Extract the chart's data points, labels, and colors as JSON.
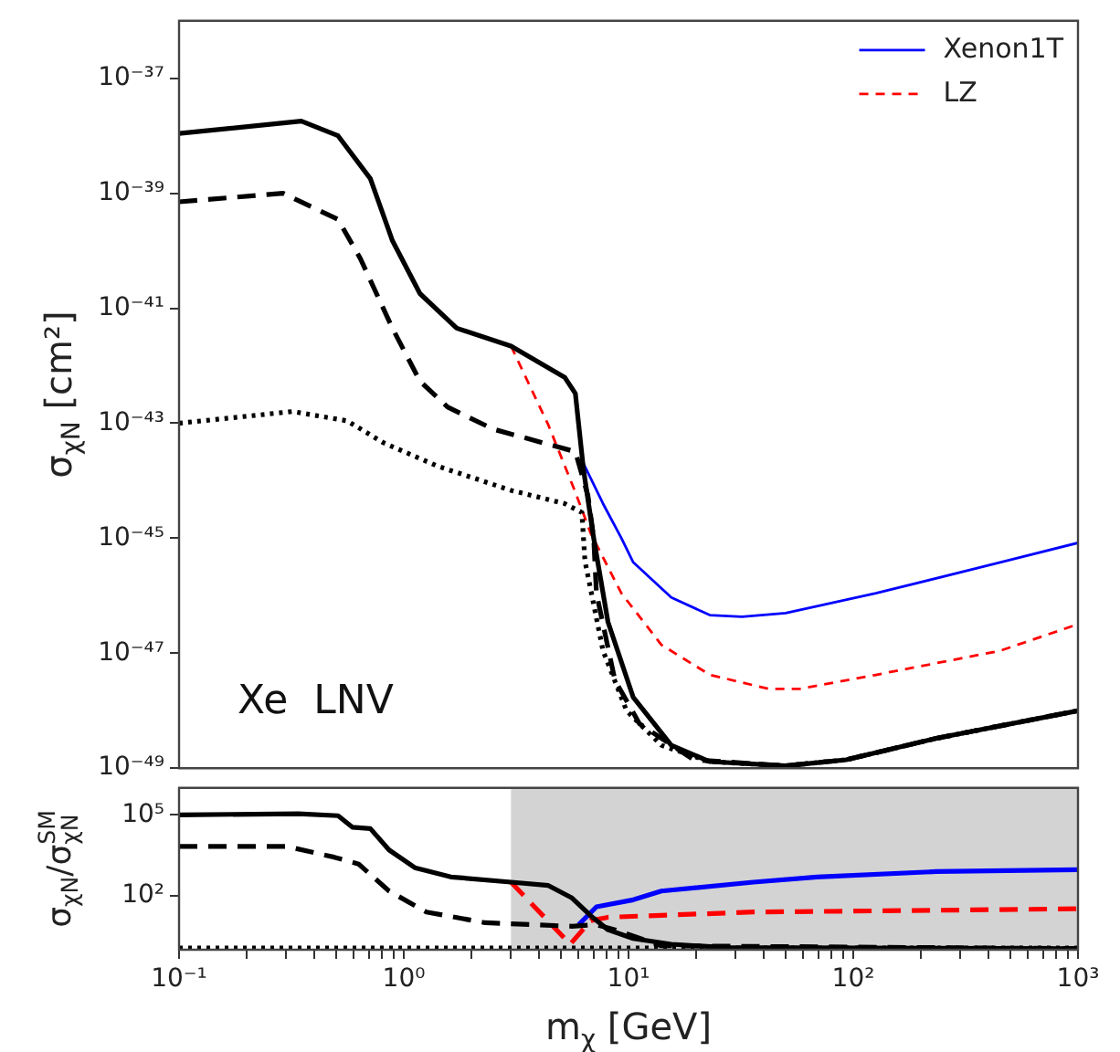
{
  "chart_data": [
    {
      "type": "line",
      "ylabel": "σ$_{χN}$ [cm²]",
      "log": "xy",
      "xlim": [
        0.1,
        1000
      ],
      "ylim": [
        1e-49,
        1e-36
      ],
      "tick_labels": "y",
      "grid": false,
      "legend": "top right",
      "annotations": [
        "Xe  LNV"
      ],
      "yticks": [
        {
          "value": 1e-49,
          "label": "10⁻⁴⁹"
        },
        {
          "value": 1e-47,
          "label": "10⁻⁴⁷"
        },
        {
          "value": 1e-45,
          "label": "10⁻⁴⁵"
        },
        {
          "value": 1e-43,
          "label": "10⁻⁴³"
        },
        {
          "value": 1e-41,
          "label": "10⁻⁴¹"
        },
        {
          "value": 1e-39,
          "label": "10⁻³⁹"
        },
        {
          "value": 1e-37,
          "label": "10⁻³⁷"
        }
      ],
      "series": [
        {
          "color": "#000000",
          "line_style": "solid",
          "x": [
            0.1,
            0.35,
            0.51,
            0.71,
            0.89,
            1.18,
            1.72,
            3.0,
            5.2,
            5.8,
            6.3,
            7.0,
            8.1,
            10.5,
            15.5,
            23,
            50,
            93,
            234,
            1000
          ],
          "values": [
            1.1e-38,
            1.8e-38,
            1e-38,
            1.8e-39,
            1.5e-40,
            1.8e-41,
            4.5e-42,
            2.2e-42,
            6.3e-43,
            3.3e-43,
            1.6e-44,
            1e-45,
            3.5e-47,
            1.7e-48,
            2.5e-49,
            1.3e-49,
            1.1e-49,
            1.4e-49,
            3.3e-49,
            1e-48
          ]
        },
        {
          "color": "#000000",
          "line_style": "dashed",
          "x": [
            0.1,
            0.29,
            0.51,
            0.64,
            0.89,
            1.18,
            1.57,
            2.5,
            4.4,
            5.8,
            6.6,
            7.0,
            7.2,
            8.7,
            11.2,
            19.5,
            50,
            93,
            234,
            1000
          ],
          "values": [
            7.1e-40,
            1e-39,
            3.5e-40,
            7.4e-41,
            4.5e-42,
            5.4e-43,
            1.9e-43,
            7.9e-44,
            4.3e-44,
            3.2e-44,
            5.5e-45,
            1e-45,
            1.1e-46,
            3.4e-48,
            5.9e-49,
            1.4e-49,
            1.1e-49,
            1.4e-49,
            3.3e-49,
            1e-48
          ]
        },
        {
          "color": "#000000",
          "line_style": "dotted",
          "x": [
            0.1,
            0.32,
            0.56,
            0.81,
            1.41,
            3.0,
            5.2,
            6.2,
            6.4,
            7.7,
            9.8,
            14,
            23,
            50,
            93,
            234,
            1000
          ],
          "values": [
            1e-43,
            1.6e-43,
            1.1e-43,
            4.6e-44,
            1.8e-44,
            6.8e-45,
            4e-45,
            2.8e-45,
            4e-46,
            1.1e-47,
            1e-48,
            2.5e-49,
            1.3e-49,
            1.1e-49,
            1.4e-49,
            3.3e-49,
            1e-48
          ]
        },
        {
          "name": "Xenon1T",
          "color": "#0000ff",
          "line_style": "solid",
          "x": [
            6.3,
            7.7,
            9.3,
            10.5,
            15.5,
            23,
            32,
            50,
            126,
            450,
            1000
          ],
          "values": [
            2e-44,
            4e-45,
            1e-45,
            3.8e-46,
            9.3e-47,
            4.6e-47,
            4.3e-47,
            5e-47,
            1.1e-46,
            3.8e-46,
            8.3e-46
          ]
        },
        {
          "name": "LZ",
          "color": "#ff0000",
          "line_style": "dashed",
          "x": [
            3.0,
            4.4,
            5.8,
            6.8,
            9.3,
            14,
            23,
            42,
            58,
            126,
            450,
            1000
          ],
          "values": [
            2.2e-42,
            9.3e-44,
            6.3e-45,
            1.2e-45,
            1.1e-46,
            1.4e-47,
            4.2e-48,
            2.4e-48,
            2.4e-48,
            4.2e-48,
            1.1e-47,
            3.2e-47
          ]
        }
      ]
    },
    {
      "type": "line",
      "xlabel": "m$_{χ}$ [GeV]",
      "ylabel": "σ$_{χN}$/σ$_{χN}$$^{SM}$",
      "log": "xy",
      "xlim": [
        0.1,
        1000
      ],
      "ylim": [
        1,
        1000000
      ],
      "grid": false,
      "legend": false,
      "yticks": [
        {
          "value": 100,
          "label": "10²"
        },
        {
          "value": 100000,
          "label": "10⁵"
        }
      ],
      "xticks": [
        {
          "value": 0.1,
          "label": "10⁻¹"
        },
        {
          "value": 0.2,
          "label": null
        },
        {
          "value": 0.3,
          "label": null
        },
        {
          "value": 0.4,
          "label": null
        },
        {
          "value": 0.5,
          "label": null
        },
        {
          "value": 0.6,
          "label": null
        },
        {
          "value": 0.7,
          "label": null
        },
        {
          "value": 0.8,
          "label": null
        },
        {
          "value": 0.9,
          "label": null
        },
        {
          "value": 1,
          "label": "10⁰"
        },
        {
          "value": 2,
          "label": null
        },
        {
          "value": 3,
          "label": null
        },
        {
          "value": 4,
          "label": null
        },
        {
          "value": 5,
          "label": null
        },
        {
          "value": 6,
          "label": null
        },
        {
          "value": 7,
          "label": null
        },
        {
          "value": 8,
          "label": null
        },
        {
          "value": 9,
          "label": null
        },
        {
          "value": 10,
          "label": "10¹"
        },
        {
          "value": 20,
          "label": null
        },
        {
          "value": 30,
          "label": null
        },
        {
          "value": 40,
          "label": null
        },
        {
          "value": 50,
          "label": null
        },
        {
          "value": 60,
          "label": null
        },
        {
          "value": 70,
          "label": null
        },
        {
          "value": 80,
          "label": null
        },
        {
          "value": 90,
          "label": null
        },
        {
          "value": 100,
          "label": "10²"
        },
        {
          "value": 200,
          "label": null
        },
        {
          "value": 300,
          "label": null
        },
        {
          "value": 400,
          "label": null
        },
        {
          "value": 500,
          "label": null
        },
        {
          "value": 600,
          "label": null
        },
        {
          "value": 700,
          "label": null
        },
        {
          "value": 800,
          "label": null
        },
        {
          "value": 900,
          "label": null
        },
        {
          "value": 1000,
          "label": "10³"
        }
      ],
      "bands": [
        {
          "axis": "x",
          "from": 3,
          "to": 1000,
          "color": "#d3d3d3"
        }
      ],
      "series": [
        {
          "color": "#000000",
          "line_style": "solid",
          "x": [
            0.1,
            0.34,
            0.51,
            0.59,
            0.71,
            0.86,
            1.12,
            1.62,
            3.0,
            4.4,
            5.6,
            6.8,
            8.1,
            10.5,
            15.5,
            27,
            1000
          ],
          "values": [
            100000,
            110000,
            93000,
            35000,
            31000,
            5000,
            1100,
            500,
            320,
            240,
            83,
            18,
            5.5,
            2.6,
            1.6,
            1.2,
            1.1
          ]
        },
        {
          "color": "#000000",
          "line_style": "dashed",
          "x": [
            0.1,
            0.3,
            0.49,
            0.63,
            0.86,
            1.26,
            2.3,
            5.6,
            7.2,
            8.7,
            14,
            1000
          ],
          "values": [
            6800,
            6800,
            2700,
            1500,
            150,
            25,
            10,
            7.4,
            8.5,
            5.5,
            1.4,
            1.1
          ]
        },
        {
          "color": "#000000",
          "line_style": "dotted",
          "x": [
            0.1,
            1000
          ],
          "values": [
            1.15,
            1.15
          ]
        },
        {
          "color": "#0000ff",
          "line_style": "solid",
          "x": [
            6.0,
            7.2,
            10.5,
            14,
            36,
            69,
            234,
            1000
          ],
          "values": [
            8.5,
            39,
            71,
            150,
            320,
            500,
            790,
            930
          ]
        },
        {
          "color": "#ff0000",
          "line_style": "dashed",
          "x": [
            3.0,
            5.5,
            6.8,
            8.1,
            36,
            234,
            1000
          ],
          "values": [
            320,
            1.6,
            12,
            16,
            25,
            29,
            33
          ]
        }
      ]
    }
  ]
}
